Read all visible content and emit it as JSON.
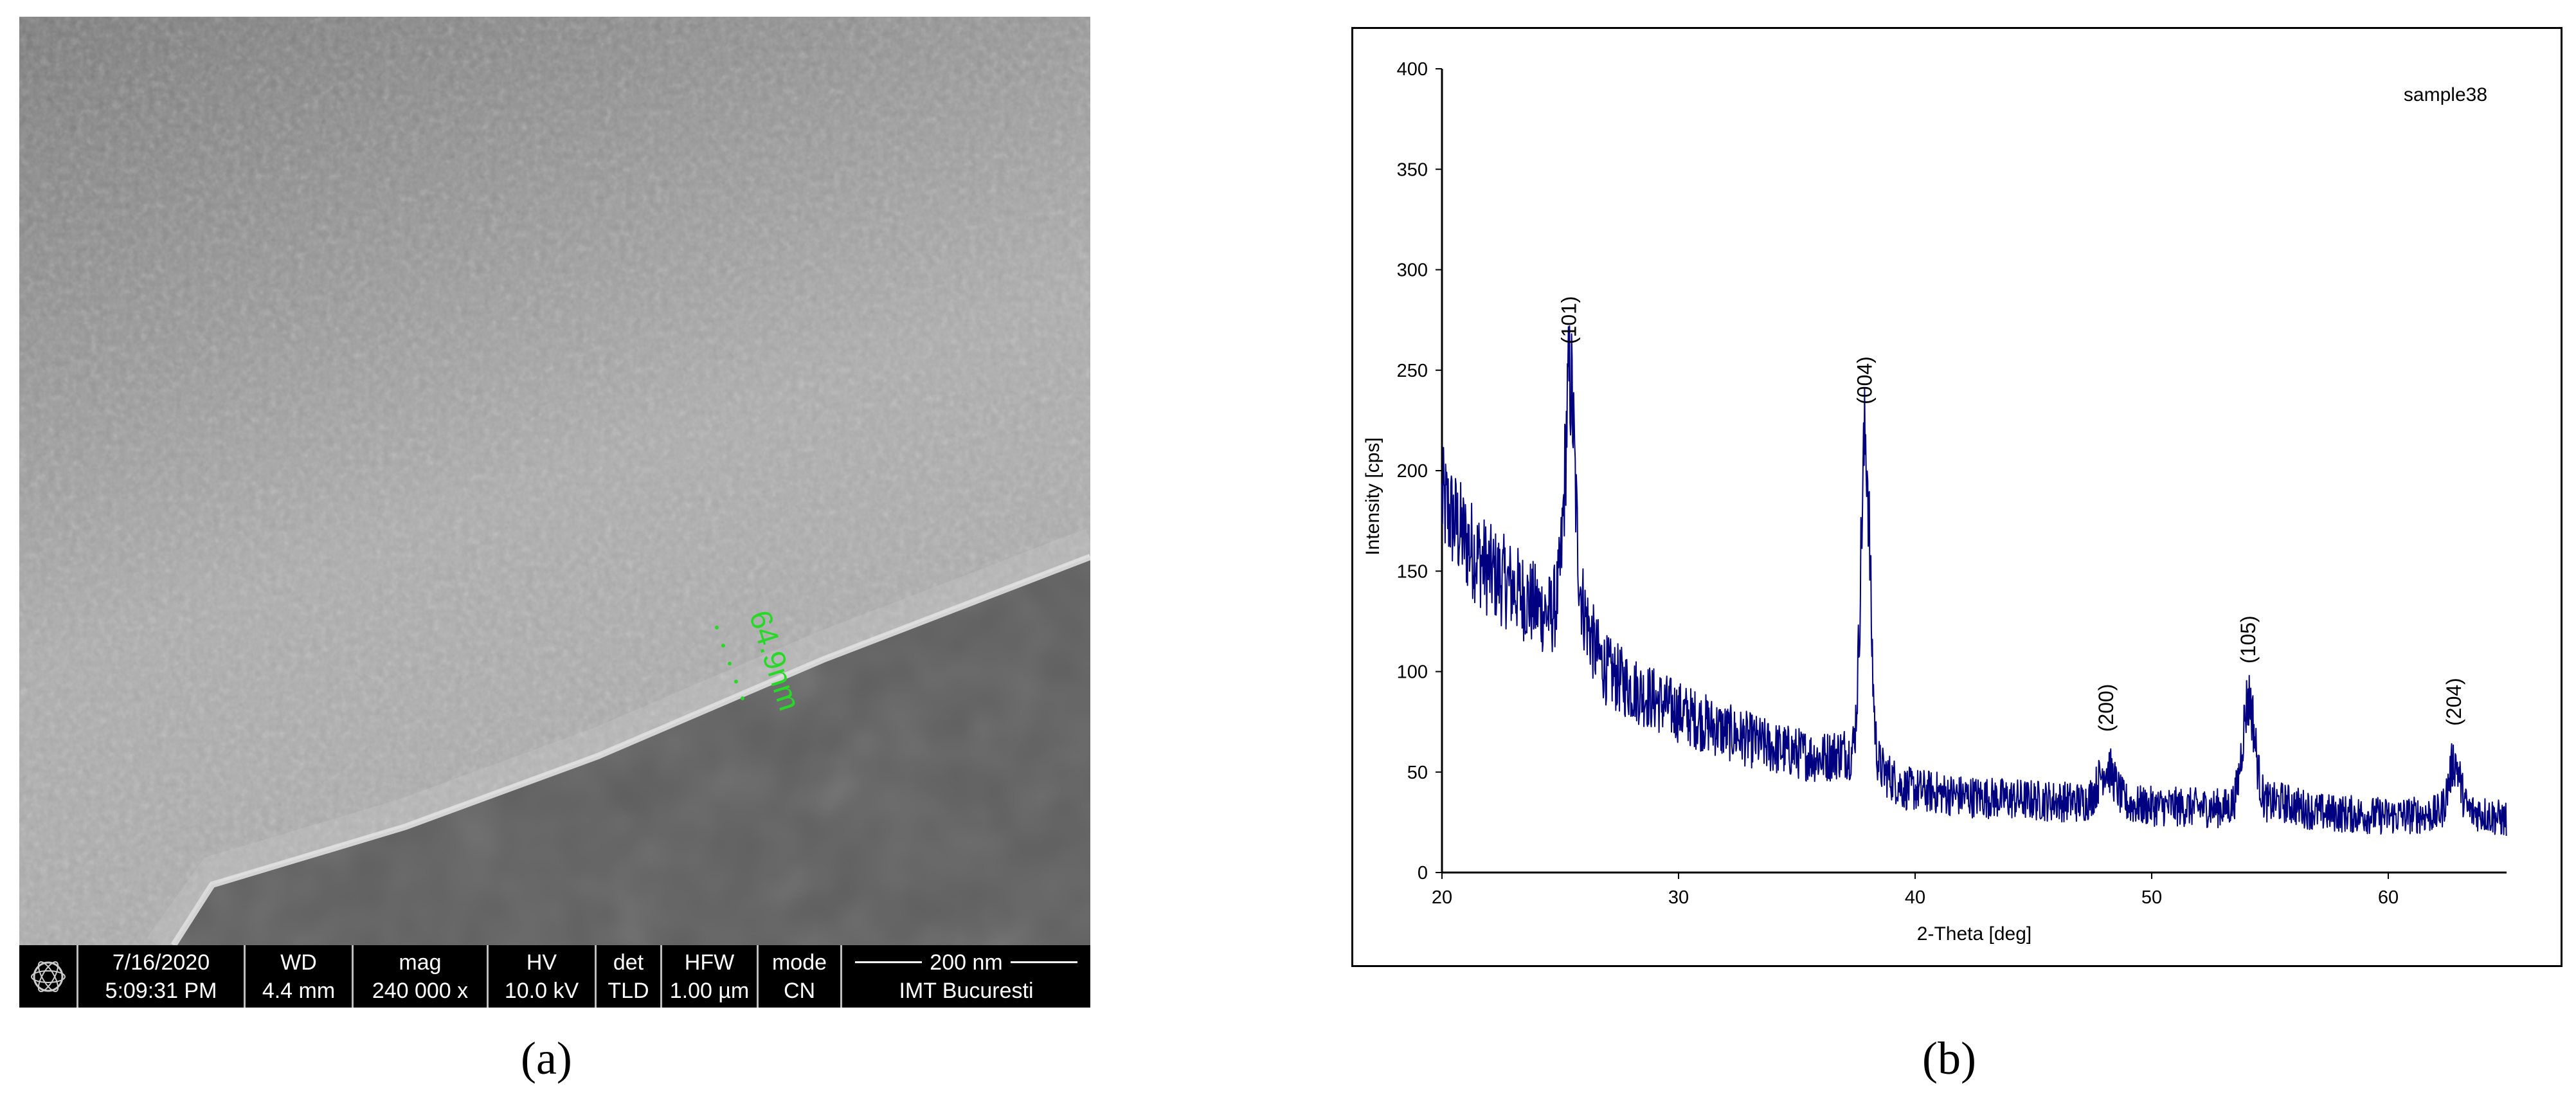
{
  "panel_a": {
    "label": "(a)",
    "measurement_label": "64.9nm",
    "info_bar": {
      "date": "7/16/2020",
      "time": "5:09:31 PM",
      "wd_label": "WD",
      "wd_value": "4.4 mm",
      "mag_label": "mag",
      "mag_value": "240 000 x",
      "hv_label": "HV",
      "hv_value": "10.0 kV",
      "det_label": "det",
      "det_value": "TLD",
      "hfw_label": "HFW",
      "hfw_value": "1.00 µm",
      "mode_label": "mode",
      "mode_value": "CN",
      "scale_label": "200 nm",
      "institution": "IMT Bucuresti"
    }
  },
  "panel_b": {
    "label": "(b)",
    "chart_data": {
      "type": "line",
      "xlabel": "2-Theta [deg]",
      "ylabel": "Intensity [cps]",
      "legend": "sample38",
      "legend_position": "top-right",
      "xlim": [
        20,
        65
      ],
      "ylim": [
        0,
        400
      ],
      "x_ticks": [
        20,
        30,
        40,
        50,
        60
      ],
      "y_ticks": [
        0,
        50,
        100,
        150,
        200,
        250,
        300,
        350,
        400
      ],
      "grid": false,
      "series_color": "#000080",
      "baseline_points": [
        [
          20,
          185
        ],
        [
          21,
          165
        ],
        [
          22,
          150
        ],
        [
          23,
          142
        ],
        [
          24,
          132
        ],
        [
          24.6,
          128
        ],
        [
          25.5,
          150
        ],
        [
          26.5,
          110
        ],
        [
          27,
          100
        ],
        [
          28,
          92
        ],
        [
          30,
          80
        ],
        [
          32,
          70
        ],
        [
          34,
          62
        ],
        [
          36,
          57
        ],
        [
          37,
          60
        ],
        [
          38.5,
          52
        ],
        [
          39.5,
          42
        ],
        [
          42,
          38
        ],
        [
          45,
          36
        ],
        [
          47,
          35
        ],
        [
          50,
          33
        ],
        [
          53,
          32
        ],
        [
          55.5,
          35
        ],
        [
          57,
          30
        ],
        [
          60,
          28
        ],
        [
          62,
          29
        ],
        [
          63.8,
          30
        ],
        [
          65,
          26
        ]
      ],
      "peaks": [
        {
          "label": "(101)",
          "position": 25.4,
          "intensity": 245,
          "width": 0.28
        },
        {
          "label": "(004)",
          "position": 37.9,
          "intensity": 215,
          "width": 0.28
        },
        {
          "label": "(200)",
          "position": 48.1,
          "intensity": 52,
          "width": 0.5
        },
        {
          "label": "(105)",
          "position": 54.1,
          "intensity": 86,
          "width": 0.38
        },
        {
          "label": "(204)",
          "position": 62.8,
          "intensity": 55,
          "width": 0.35
        }
      ]
    }
  }
}
